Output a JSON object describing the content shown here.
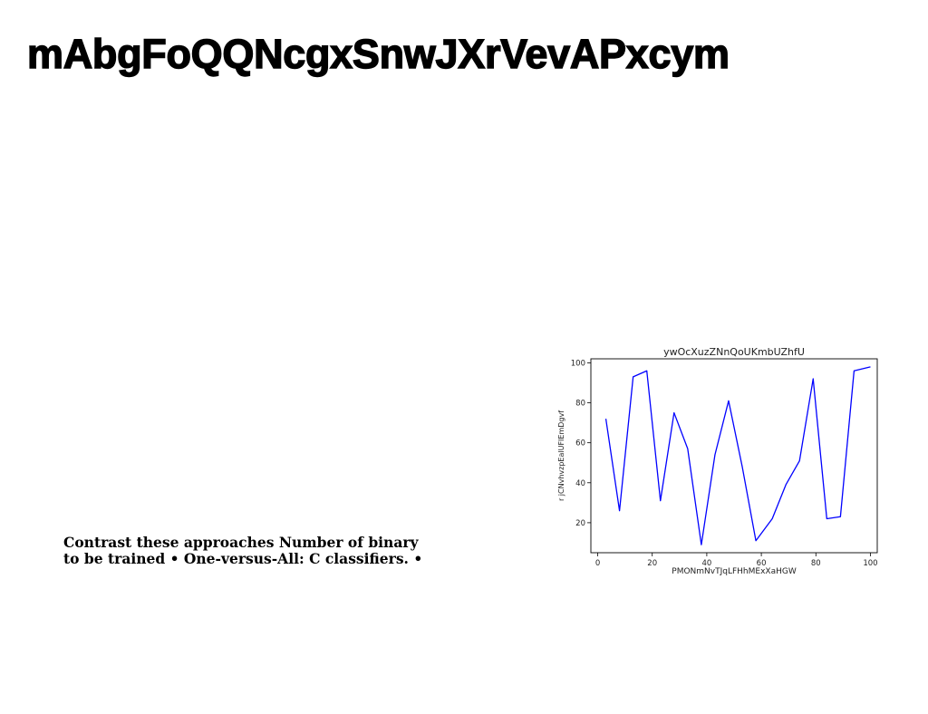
{
  "slide": {
    "title": "mAbgFoQQNcgxSnwJXrVevAPxcym",
    "body_lines": [
      "Contrast these approaches Number of binary",
      "to be trained • One-versus-All: C classifiers. •"
    ]
  },
  "chart_data": {
    "type": "line",
    "title": "ywOcXuzZNnQoUKmbUZhfU",
    "xlabel": "PMONmNvTJqLFHhMExXaHGW",
    "ylabel": "r jCNvhvzpEalUFIEmDgvf",
    "xlim": [
      -2.5,
      102.5
    ],
    "ylim": [
      5,
      102
    ],
    "x_ticks": [
      0,
      20,
      40,
      60,
      80,
      100
    ],
    "y_ticks": [
      20,
      40,
      60,
      80,
      100
    ],
    "grid": false,
    "series": [
      {
        "color": "#0000ff",
        "x": [
          3,
          8,
          13,
          18,
          23,
          28,
          33,
          38,
          43,
          48,
          53,
          58,
          64,
          69,
          74,
          79,
          84,
          89,
          94,
          100
        ],
        "y": [
          72,
          26,
          93,
          96,
          31,
          75,
          57,
          9,
          54,
          81,
          48,
          11,
          22,
          39,
          51,
          92,
          22,
          23,
          96,
          98
        ]
      }
    ]
  }
}
